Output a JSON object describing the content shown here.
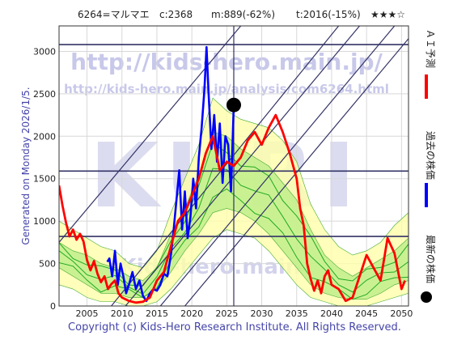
{
  "header": {
    "title": "6264=マルマエ",
    "current": "c:2368",
    "max": "m:889(-62%)",
    "target": "t:2016(-15%)",
    "stars": "★★★☆"
  },
  "side_label": "Generated on Monday 2026/1/5.",
  "footer": "Copyright (c) Kids-Hero Research Institute. All Rights Reserved.",
  "watermarks": {
    "url_top": "http://kids-hero.main.jp/",
    "url_sub": "http://kids-hero.main.jp/analysis/com6264.html",
    "big": "KURI",
    "lower": "Kids-hero.main"
  },
  "legend": [
    {
      "label": "ＡＩ予測",
      "color": "#ff0000"
    },
    {
      "label": "過去の株価",
      "color": "#0000ff"
    },
    {
      "label": "最新の株価",
      "color": "#000000"
    }
  ],
  "chart_data": {
    "type": "line",
    "title": "6264=マルマエ",
    "xlabel": "",
    "ylabel": "",
    "xlim": [
      2001,
      2051
    ],
    "ylim": [
      0,
      3300
    ],
    "x_ticks": [
      2005,
      2010,
      2015,
      2020,
      2025,
      2030,
      2035,
      2040,
      2045,
      2050
    ],
    "y_ticks": [
      0,
      500,
      1000,
      1500,
      2000,
      2500,
      3000
    ],
    "grid": true,
    "horizontal_lines": [
      3080,
      1590,
      820
    ],
    "vertical_line": 2026,
    "latest_point": {
      "x": 2026.0,
      "y": 2368
    },
    "trend_lines": [
      {
        "x1": 2001,
        "y1": 750,
        "x2": 2027,
        "y2": 3300
      },
      {
        "x1": 2007,
        "y1": -150,
        "x2": 2041,
        "y2": 3300
      },
      {
        "x1": 2010.5,
        "y1": 0,
        "x2": 2044,
        "y2": 3300
      },
      {
        "x1": 2015.5,
        "y1": 0,
        "x2": 2049,
        "y2": 3300
      },
      {
        "x1": 2019,
        "y1": 0,
        "x2": 2051,
        "y2": 3150
      }
    ],
    "series": [
      {
        "name": "過去の株価",
        "color": "#0000ff",
        "x": [
          2007.9,
          2008.2,
          2008.6,
          2009.0,
          2009.4,
          2009.8,
          2010.2,
          2010.6,
          2011.0,
          2011.5,
          2012.0,
          2012.5,
          2013.0,
          2013.5,
          2014.0,
          2014.5,
          2015.0,
          2015.5,
          2016.0,
          2016.5,
          2017.0,
          2017.4,
          2017.8,
          2018.2,
          2018.6,
          2019.0,
          2019.4,
          2019.8,
          2020.2,
          2020.6,
          2021.0,
          2021.4,
          2021.8,
          2022.1,
          2022.4,
          2022.8,
          2023.2,
          2023.6,
          2024.0,
          2024.4,
          2024.8,
          2025.2,
          2025.6,
          2026.0
        ],
        "y": [
          520,
          560,
          350,
          650,
          250,
          500,
          350,
          150,
          250,
          400,
          200,
          300,
          120,
          60,
          150,
          200,
          180,
          250,
          380,
          350,
          600,
          900,
          1250,
          1600,
          900,
          1350,
          800,
          1050,
          1500,
          1150,
          1750,
          2100,
          2550,
          3050,
          2500,
          1850,
          2250,
          1700,
          2150,
          1450,
          2000,
          1900,
          1350,
          2368
        ]
      },
      {
        "name": "ＡＩ予測",
        "color": "#ff0000",
        "x": [
          2001,
          2001.5,
          2002,
          2002.5,
          2003,
          2003.5,
          2004,
          2004.5,
          2005,
          2005.5,
          2006,
          2006.5,
          2007,
          2007.5,
          2008,
          2008.5,
          2009,
          2009.5,
          2010,
          2011,
          2012,
          2013,
          2014,
          2015,
          2016,
          2017,
          2018,
          2019,
          2020,
          2021,
          2022,
          2023,
          2024,
          2025,
          2026,
          2027,
          2028,
          2029,
          2030,
          2031,
          2032,
          2033,
          2034,
          2035,
          2035.5,
          2036,
          2036.5,
          2037,
          2037.5,
          2038,
          2038.5,
          2039,
          2039.5,
          2040,
          2041,
          2042,
          2043,
          2044,
          2045,
          2046,
          2047,
          2048,
          2049,
          2050,
          2050.5
        ],
        "y": [
          1420,
          1180,
          980,
          820,
          900,
          780,
          850,
          760,
          540,
          420,
          530,
          380,
          280,
          350,
          200,
          260,
          300,
          150,
          100,
          60,
          40,
          50,
          100,
          300,
          400,
          700,
          1000,
          1100,
          1300,
          1500,
          1800,
          2000,
          1600,
          1700,
          1650,
          1750,
          1950,
          2050,
          1900,
          2100,
          2250,
          2050,
          1800,
          1500,
          1150,
          950,
          500,
          320,
          180,
          300,
          150,
          350,
          420,
          250,
          200,
          60,
          100,
          350,
          600,
          450,
          300,
          800,
          620,
          200,
          300
        ]
      }
    ],
    "bands": [
      {
        "name": "outer",
        "color": "#ffffaa",
        "x": [
          2001,
          2003,
          2005,
          2007,
          2009,
          2011,
          2013,
          2015,
          2017,
          2019,
          2021,
          2023,
          2025,
          2027,
          2029,
          2031,
          2033,
          2035,
          2037,
          2039,
          2041,
          2043,
          2045,
          2047,
          2049,
          2051
        ],
        "upper": [
          1000,
          900,
          800,
          700,
          650,
          500,
          450,
          650,
          1100,
          1500,
          1900,
          2450,
          2300,
          2200,
          2150,
          2100,
          1950,
          1700,
          1200,
          900,
          700,
          600,
          650,
          750,
          950,
          1100
        ],
        "lower": [
          250,
          200,
          100,
          50,
          50,
          0,
          0,
          50,
          200,
          400,
          600,
          800,
          900,
          850,
          800,
          650,
          450,
          250,
          100,
          50,
          0,
          0,
          0,
          50,
          100,
          150
        ]
      },
      {
        "name": "inner",
        "color": "#bbee88",
        "x": [
          2001,
          2003,
          2005,
          2007,
          2009,
          2011,
          2013,
          2015,
          2017,
          2019,
          2021,
          2023,
          2025,
          2027,
          2029,
          2031,
          2033,
          2035,
          2037,
          2039,
          2041,
          2043,
          2045,
          2047,
          2049,
          2051
        ],
        "upper": [
          750,
          650,
          600,
          500,
          450,
          350,
          300,
          450,
          850,
          1150,
          1550,
          2050,
          2000,
          1850,
          1750,
          1650,
          1450,
          1250,
          900,
          600,
          450,
          350,
          450,
          550,
          650,
          800
        ],
        "lower": [
          450,
          350,
          250,
          150,
          150,
          100,
          100,
          200,
          400,
          650,
          850,
          1100,
          1150,
          1100,
          1000,
          850,
          650,
          450,
          250,
          150,
          100,
          80,
          80,
          150,
          250,
          300
        ]
      }
    ]
  }
}
